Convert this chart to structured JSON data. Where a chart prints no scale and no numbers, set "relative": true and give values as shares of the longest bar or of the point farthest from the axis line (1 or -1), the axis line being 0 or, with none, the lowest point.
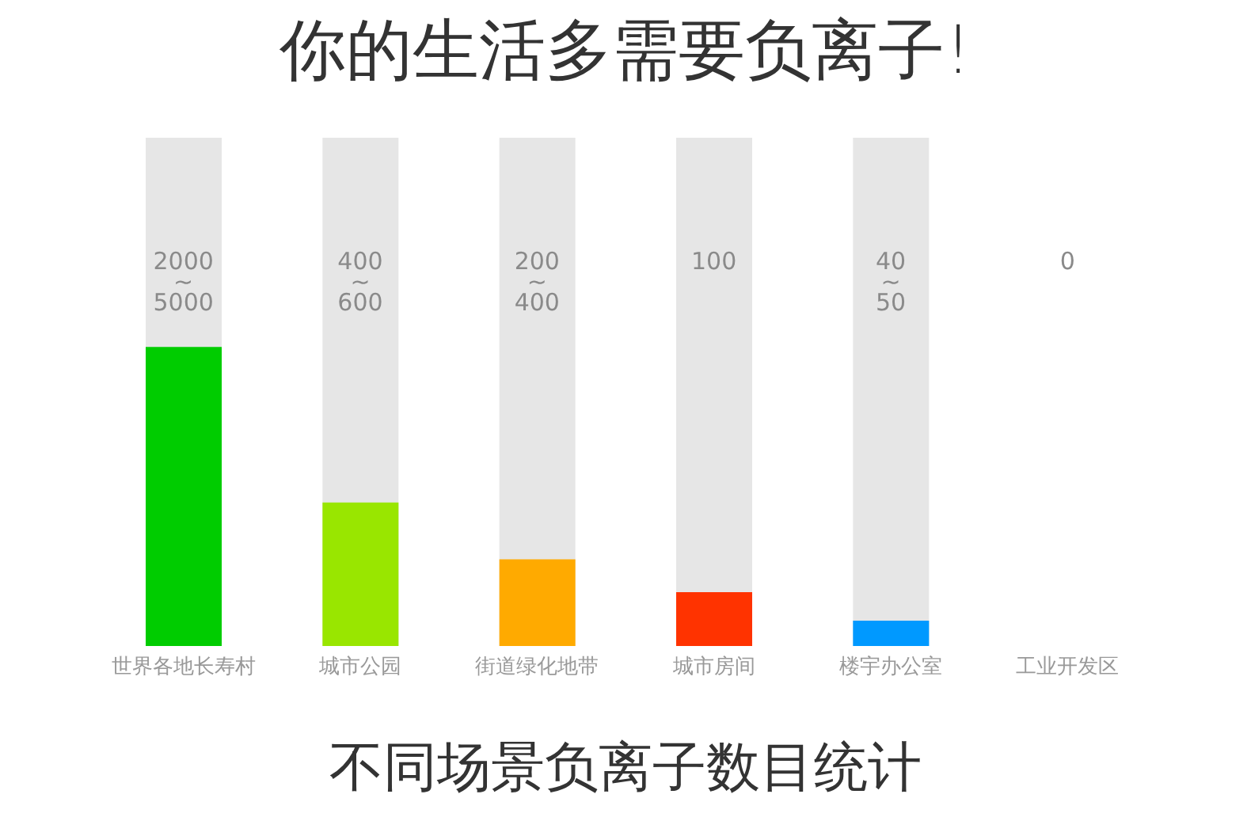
{
  "chart_data": {
    "type": "bar",
    "title": "你的生活多需要负离子!",
    "xlabel": "不同场景负离子数目统计",
    "categories": [
      "世界各地长寿村",
      "城市公园",
      "街道绿化地带",
      "城市房间",
      "楼宇办公室",
      "工业开发区"
    ],
    "values": [
      1,
      0.48,
      0.29,
      0.18,
      0.085,
      0
    ],
    "colors": [
      "#00cc00",
      "#99e600",
      "#ffaa00",
      "#ff3300",
      "#0099ff",
      "#e6e6e6"
    ],
    "annotations": [
      "2000~5000",
      "400~600",
      "200~400",
      "100",
      "40~50",
      "0"
    ],
    "relative": true,
    "grid": false,
    "legend": false
  }
}
